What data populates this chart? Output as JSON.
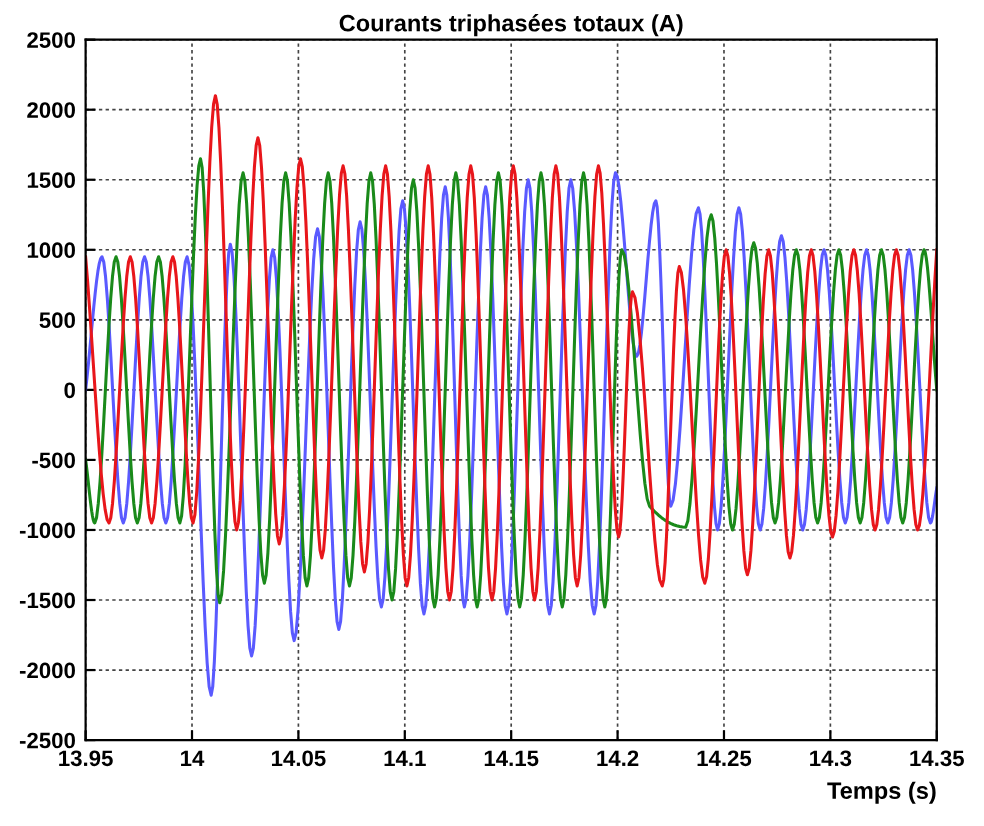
{
  "chart_data": {
    "type": "line",
    "title": "Courants triphasées totaux (A)",
    "xlabel": "Temps (s)",
    "xlim": [
      13.95,
      14.35
    ],
    "xticks": [
      13.95,
      14,
      14.05,
      14.1,
      14.15,
      14.2,
      14.25,
      14.3,
      14.35
    ],
    "ylim": [
      -2500,
      2500
    ],
    "yticks": [
      -2500,
      -2000,
      -1500,
      -1000,
      -500,
      0,
      500,
      1000,
      1500,
      2000,
      2500
    ],
    "grid": true,
    "line_style": "solid",
    "marker": "none",
    "series": [
      {
        "color": "#5a5aff",
        "x": [
          13.95,
          13.9577,
          13.9677,
          13.9777,
          13.9877,
          13.9977,
          14.009,
          14.018,
          14.028,
          14.038,
          14.048,
          14.059,
          14.069,
          14.079,
          14.089,
          14.099,
          14.109,
          14.119,
          14.128,
          14.138,
          14.148,
          14.158,
          14.168,
          14.178,
          14.189,
          14.199,
          14.209,
          14.218,
          14.225,
          14.238,
          14.247,
          14.257,
          14.267,
          14.277,
          14.287,
          14.297,
          14.307,
          14.317,
          14.327,
          14.337,
          14.347,
          14.35
        ],
        "values": [
          0,
          950,
          -950,
          950,
          -950,
          950,
          -2180,
          1040,
          -1900,
          1000,
          -1790,
          1150,
          -1710,
          1200,
          -1550,
          1350,
          -1600,
          1450,
          -1550,
          1450,
          -1600,
          1500,
          -1600,
          1500,
          -1600,
          1550,
          240,
          1350,
          -830,
          1300,
          -1000,
          1300,
          -1000,
          1100,
          -1000,
          1000,
          -950,
          1000,
          -950,
          1000,
          -950,
          -700
        ]
      },
      {
        "color": "#1a8a1a",
        "x": [
          13.95,
          13.9543,
          13.9643,
          13.9743,
          13.9843,
          13.9943,
          14.004,
          14.013,
          14.024,
          14.034,
          14.044,
          14.054,
          14.064,
          14.074,
          14.084,
          14.094,
          14.104,
          14.114,
          14.124,
          14.134,
          14.144,
          14.154,
          14.164,
          14.174,
          14.184,
          14.194,
          14.202,
          14.215,
          14.232,
          14.244,
          14.254,
          14.264,
          14.274,
          14.284,
          14.294,
          14.304,
          14.314,
          14.324,
          14.334,
          14.344,
          14.35
        ],
        "values": [
          -500,
          -950,
          950,
          -950,
          950,
          -950,
          1650,
          -1520,
          1550,
          -1380,
          1550,
          -1400,
          1550,
          -1400,
          1550,
          -1500,
          1500,
          -1550,
          1550,
          -1550,
          1550,
          -1550,
          1550,
          -1550,
          1550,
          -1550,
          1000,
          -830,
          -980,
          1250,
          -1000,
          1050,
          -950,
          1000,
          -950,
          1000,
          -950,
          1000,
          -950,
          1000,
          0
        ]
      },
      {
        "color": "#e8161b",
        "x": [
          13.95,
          13.961,
          13.971,
          13.981,
          13.991,
          14.0005,
          14.011,
          14.021,
          14.031,
          14.041,
          14.051,
          14.061,
          14.071,
          14.081,
          14.091,
          14.101,
          14.111,
          14.121,
          14.131,
          14.141,
          14.151,
          14.161,
          14.171,
          14.181,
          14.191,
          14.2005,
          14.207,
          14.221,
          14.229,
          14.241,
          14.251,
          14.261,
          14.271,
          14.281,
          14.291,
          14.301,
          14.311,
          14.321,
          14.331,
          14.341,
          14.35
        ],
        "values": [
          950,
          -950,
          950,
          -950,
          950,
          -950,
          2100,
          -1000,
          1800,
          -1100,
          1650,
          -1200,
          1600,
          -1300,
          1600,
          -1400,
          1600,
          -1500,
          1600,
          -1500,
          1600,
          -1500,
          1600,
          -1400,
          1600,
          -1050,
          700,
          -1400,
          880,
          -1380,
          1000,
          -1320,
          1000,
          -1200,
          1000,
          -1050,
          1000,
          -1000,
          1000,
          -1000,
          1000
        ]
      }
    ]
  }
}
